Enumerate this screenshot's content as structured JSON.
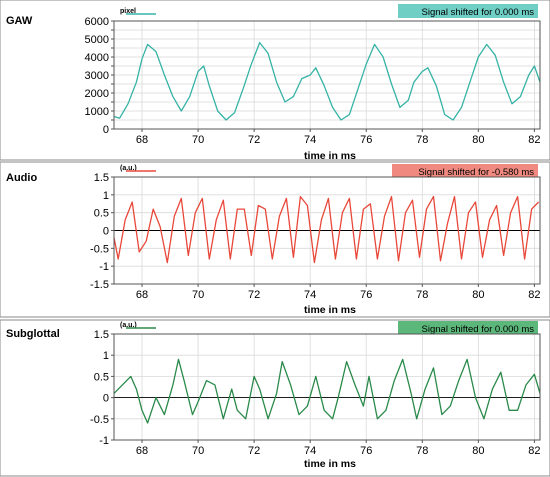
{
  "chart_data": [
    {
      "type": "line",
      "panel_label": "GAW",
      "y_unit": "pixel",
      "xlabel": "time in ms",
      "shift_text": "Signal shifted for 0.000 ms",
      "color": "#36b3a6",
      "badge_color": "#6fcfc5",
      "xlim": [
        67,
        82.2
      ],
      "ylim": [
        0,
        6000
      ],
      "xticks": [
        68,
        70,
        72,
        74,
        76,
        78,
        80,
        82
      ],
      "yticks": [
        0,
        500,
        1000,
        1500,
        2000,
        2500,
        3000,
        3500,
        4000,
        4500,
        5000,
        5500,
        6000
      ],
      "ytick_labels": [
        "0",
        "",
        "1000",
        "",
        "2000",
        "",
        "3000",
        "",
        "4000",
        "",
        "5000",
        "",
        "6000"
      ],
      "zero_line": false,
      "series": [
        {
          "x": [
            67.0,
            67.2,
            67.5,
            67.8,
            68.0,
            68.2,
            68.5,
            68.8,
            69.1,
            69.4,
            69.7,
            70.0,
            70.2,
            70.4,
            70.7,
            71.0,
            71.3,
            71.6,
            71.9,
            72.2,
            72.5,
            72.8,
            73.1,
            73.4,
            73.7,
            74.0,
            74.2,
            74.5,
            74.8,
            75.1,
            75.4,
            75.7,
            76.0,
            76.3,
            76.6,
            76.9,
            77.2,
            77.5,
            77.7,
            78.0,
            78.2,
            78.5,
            78.8,
            79.1,
            79.4,
            79.7,
            80.0,
            80.3,
            80.6,
            80.9,
            81.2,
            81.5,
            81.8,
            82.0,
            82.2
          ],
          "y": [
            700,
            600,
            1400,
            2600,
            3900,
            4700,
            4300,
            3000,
            1800,
            1000,
            1800,
            3200,
            3500,
            2400,
            1000,
            500,
            900,
            2200,
            3600,
            4800,
            4200,
            2600,
            1500,
            1800,
            2800,
            3000,
            3400,
            2400,
            1200,
            500,
            800,
            2200,
            3600,
            4700,
            4000,
            2500,
            1200,
            1600,
            2600,
            3200,
            3400,
            2400,
            800,
            500,
            1200,
            2600,
            4000,
            4700,
            4100,
            2600,
            1400,
            1800,
            3000,
            3500,
            2600
          ]
        }
      ]
    },
    {
      "type": "line",
      "panel_label": "Audio",
      "y_unit": "(a.u.)",
      "xlabel": "time in ms",
      "shift_text": "Signal shifted for -0.580 ms",
      "color": "#e8483a",
      "badge_color": "#f08a80",
      "xlim": [
        67,
        82.2
      ],
      "ylim": [
        -1.5,
        1.5
      ],
      "xticks": [
        68,
        70,
        72,
        74,
        76,
        78,
        80,
        82
      ],
      "yticks": [
        -1.5,
        -1,
        -0.5,
        0,
        0.5,
        1,
        1.5
      ],
      "ytick_labels": [
        "-1.5",
        "-1",
        "-0.5",
        "0",
        "0.5",
        "1",
        "1.5"
      ],
      "zero_line": true,
      "series": [
        {
          "x": [
            67.0,
            67.15,
            67.4,
            67.65,
            67.9,
            68.15,
            68.4,
            68.65,
            68.9,
            69.15,
            69.4,
            69.65,
            69.9,
            70.15,
            70.4,
            70.65,
            70.9,
            71.15,
            71.4,
            71.65,
            71.9,
            72.15,
            72.4,
            72.65,
            72.9,
            73.15,
            73.4,
            73.65,
            73.9,
            74.15,
            74.4,
            74.65,
            74.9,
            75.15,
            75.4,
            75.65,
            75.9,
            76.15,
            76.4,
            76.65,
            76.9,
            77.15,
            77.4,
            77.65,
            77.9,
            78.15,
            78.4,
            78.65,
            78.9,
            79.15,
            79.4,
            79.65,
            79.9,
            80.15,
            80.4,
            80.65,
            80.9,
            81.15,
            81.4,
            81.65,
            81.9,
            82.15
          ],
          "y": [
            -0.2,
            -0.8,
            0.3,
            0.8,
            -0.6,
            -0.3,
            0.6,
            0.1,
            -0.9,
            0.4,
            0.9,
            -0.7,
            0.5,
            0.9,
            -0.8,
            0.3,
            0.85,
            -0.8,
            0.6,
            0.6,
            -0.7,
            0.7,
            0.6,
            -0.8,
            0.4,
            0.9,
            -0.75,
            0.95,
            0.7,
            -0.9,
            0.3,
            0.9,
            -0.8,
            0.5,
            0.9,
            -0.8,
            0.6,
            0.75,
            -0.8,
            0.4,
            0.95,
            -0.85,
            0.5,
            0.85,
            -0.75,
            0.6,
            0.95,
            -0.85,
            0.2,
            0.95,
            -0.8,
            0.5,
            0.8,
            -0.75,
            0.3,
            0.7,
            -0.7,
            0.5,
            0.95,
            -0.8,
            0.6,
            0.8
          ]
        }
      ]
    },
    {
      "type": "line",
      "panel_label": "Subglottal",
      "y_unit": "(a.u.)",
      "xlabel": "time in ms",
      "shift_text": "Signal shifted for 0.000 ms",
      "color": "#2a8a4a",
      "badge_color": "#5cb87a",
      "xlim": [
        67,
        82.2
      ],
      "ylim": [
        -1,
        1.5
      ],
      "xticks": [
        68,
        70,
        72,
        74,
        76,
        78,
        80,
        82
      ],
      "yticks": [
        -1,
        -0.5,
        0,
        0.5,
        1,
        1.5
      ],
      "ytick_labels": [
        "-1",
        "-0.5",
        "0",
        "0.5",
        "1",
        "1.5"
      ],
      "zero_line": true,
      "series": [
        {
          "x": [
            67.0,
            67.3,
            67.6,
            67.8,
            68.0,
            68.2,
            68.5,
            68.8,
            69.1,
            69.3,
            69.5,
            69.8,
            70.0,
            70.3,
            70.6,
            70.9,
            71.2,
            71.4,
            71.7,
            72.0,
            72.2,
            72.5,
            72.8,
            73.0,
            73.3,
            73.6,
            73.9,
            74.2,
            74.5,
            74.8,
            75.0,
            75.3,
            75.6,
            75.9,
            76.1,
            76.4,
            76.7,
            77.0,
            77.3,
            77.6,
            77.8,
            78.1,
            78.4,
            78.7,
            79.0,
            79.3,
            79.6,
            79.9,
            80.2,
            80.5,
            80.8,
            81.1,
            81.4,
            81.7,
            82.0,
            82.2
          ],
          "y": [
            0.1,
            0.3,
            0.5,
            0.2,
            -0.3,
            -0.6,
            0.0,
            -0.4,
            0.3,
            0.9,
            0.4,
            -0.4,
            -0.1,
            0.4,
            0.3,
            -0.5,
            0.2,
            -0.3,
            -0.5,
            0.5,
            0.2,
            -0.5,
            0.1,
            0.85,
            0.3,
            -0.4,
            -0.2,
            0.5,
            -0.3,
            -0.5,
            0.0,
            0.85,
            0.3,
            -0.2,
            0.5,
            -0.5,
            -0.3,
            0.4,
            0.9,
            0.1,
            -0.5,
            0.2,
            0.7,
            -0.4,
            -0.2,
            0.4,
            0.9,
            0.0,
            -0.5,
            0.2,
            0.6,
            -0.3,
            -0.3,
            0.3,
            0.55,
            0.1
          ]
        }
      ]
    }
  ]
}
